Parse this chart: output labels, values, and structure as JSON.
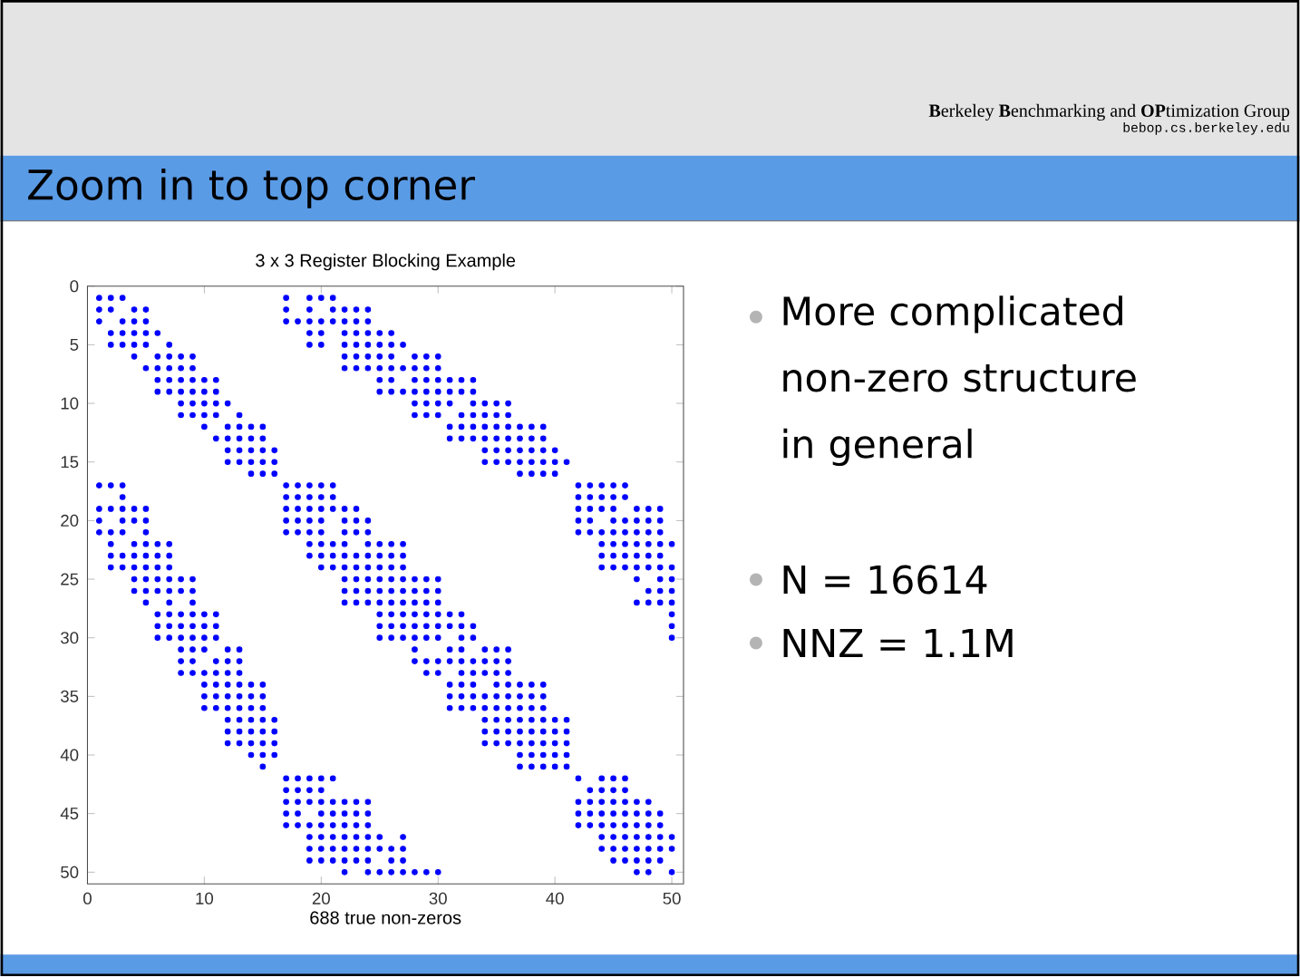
{
  "chart_data": {
    "type": "scatter",
    "title": "3 x 3 Register Blocking Example",
    "xlabel": "688 true non-zeros",
    "xlim": [
      0,
      51
    ],
    "ylim": [
      51,
      0
    ],
    "xticks": [
      0,
      10,
      20,
      30,
      40,
      50
    ],
    "yticks": [
      0,
      5,
      10,
      15,
      20,
      25,
      30,
      35,
      40,
      45,
      50
    ],
    "marker": "circle",
    "annotations": [
      "**B**erkeley **B**enchmarking and **OP**timization Group",
      "bebop.cs.berkeley.edu",
      "Zoom in to top corner",
      "More complicated non-zero structure in general",
      "N = 16614",
      "NNZ = 1.1M"
    ],
    "series": [
      {
        "color": "#0000ff",
        "x": [
          1,
          2,
          3,
          17,
          19,
          20,
          21
        ],
        "values": [
          1,
          1,
          1,
          1,
          1,
          1,
          1
        ]
      },
      {
        "color": "#0000ff",
        "x": [
          1,
          2,
          4,
          5,
          17,
          19,
          21,
          22,
          23,
          24
        ],
        "values": [
          2,
          2,
          2,
          2,
          2,
          2,
          2,
          2,
          2,
          2
        ]
      },
      {
        "color": "#0000ff",
        "x": [
          1,
          3,
          4,
          5,
          17,
          18,
          19,
          20,
          21,
          22,
          23,
          24
        ],
        "values": [
          3,
          3,
          3,
          3,
          3,
          3,
          3,
          3,
          3,
          3,
          3,
          3
        ]
      },
      {
        "color": "#0000ff",
        "x": [
          2,
          3,
          4,
          5,
          6,
          19,
          20,
          22,
          23,
          24,
          25,
          26
        ],
        "values": [
          4,
          4,
          4,
          4,
          4,
          4,
          4,
          4,
          4,
          4,
          4,
          4
        ]
      },
      {
        "color": "#0000ff",
        "x": [
          2,
          3,
          4,
          5,
          7,
          19,
          20,
          22,
          23,
          24,
          25,
          26,
          27
        ],
        "values": [
          5,
          5,
          5,
          5,
          5,
          5,
          5,
          5,
          5,
          5,
          5,
          5,
          5
        ]
      },
      {
        "color": "#0000ff",
        "x": [
          4,
          6,
          7,
          8,
          9,
          22,
          23,
          24,
          25,
          26,
          28,
          29,
          30
        ],
        "values": [
          6,
          6,
          6,
          6,
          6,
          6,
          6,
          6,
          6,
          6,
          6,
          6,
          6
        ]
      },
      {
        "color": "#0000ff",
        "x": [
          5,
          6,
          7,
          8,
          9,
          22,
          23,
          24,
          25,
          26,
          27,
          28,
          29,
          30
        ],
        "values": [
          7,
          7,
          7,
          7,
          7,
          7,
          7,
          7,
          7,
          7,
          7,
          7,
          7,
          7
        ]
      },
      {
        "color": "#0000ff",
        "x": [
          6,
          7,
          8,
          9,
          10,
          11,
          25,
          26,
          28,
          29,
          30,
          31,
          32,
          33
        ],
        "values": [
          8,
          8,
          8,
          8,
          8,
          8,
          8,
          8,
          8,
          8,
          8,
          8,
          8,
          8
        ]
      },
      {
        "color": "#0000ff",
        "x": [
          6,
          7,
          8,
          9,
          10,
          11,
          25,
          26,
          27,
          28,
          29,
          30,
          31,
          32,
          33
        ],
        "values": [
          9,
          9,
          9,
          9,
          9,
          9,
          9,
          9,
          9,
          9,
          9,
          9,
          9,
          9,
          9
        ]
      },
      {
        "color": "#0000ff",
        "x": [
          8,
          9,
          10,
          11,
          12,
          28,
          29,
          30,
          31,
          33,
          34,
          35,
          36
        ],
        "values": [
          10,
          10,
          10,
          10,
          10,
          10,
          10,
          10,
          10,
          10,
          10,
          10,
          10
        ]
      },
      {
        "color": "#0000ff",
        "x": [
          8,
          9,
          10,
          11,
          13,
          28,
          29,
          30,
          32,
          33,
          34,
          35,
          36
        ],
        "values": [
          11,
          11,
          11,
          11,
          11,
          11,
          11,
          11,
          11,
          11,
          11,
          11,
          11
        ]
      },
      {
        "color": "#0000ff",
        "x": [
          10,
          12,
          13,
          14,
          15,
          31,
          32,
          33,
          34,
          35,
          36,
          37,
          38,
          39
        ],
        "values": [
          12,
          12,
          12,
          12,
          12,
          12,
          12,
          12,
          12,
          12,
          12,
          12,
          12,
          12
        ]
      },
      {
        "color": "#0000ff",
        "x": [
          11,
          12,
          13,
          14,
          15,
          31,
          32,
          33,
          34,
          35,
          36,
          37,
          38,
          39
        ],
        "values": [
          13,
          13,
          13,
          13,
          13,
          13,
          13,
          13,
          13,
          13,
          13,
          13,
          13,
          13
        ]
      },
      {
        "color": "#0000ff",
        "x": [
          12,
          13,
          14,
          15,
          16,
          34,
          35,
          36,
          37,
          38,
          39,
          40
        ],
        "values": [
          14,
          14,
          14,
          14,
          14,
          14,
          14,
          14,
          14,
          14,
          14,
          14
        ]
      },
      {
        "color": "#0000ff",
        "x": [
          12,
          13,
          14,
          15,
          16,
          34,
          35,
          36,
          37,
          38,
          39,
          40,
          41
        ],
        "values": [
          15,
          15,
          15,
          15,
          15,
          15,
          15,
          15,
          15,
          15,
          15,
          15,
          15
        ]
      },
      {
        "color": "#0000ff",
        "x": [
          14,
          15,
          16,
          37,
          38,
          39,
          40
        ],
        "values": [
          16,
          16,
          16,
          16,
          16,
          16,
          16
        ]
      },
      {
        "color": "#0000ff",
        "x": [
          1,
          2,
          3,
          17,
          18,
          19,
          20,
          21,
          42,
          43,
          44,
          45,
          46
        ],
        "values": [
          17,
          17,
          17,
          17,
          17,
          17,
          17,
          17,
          17,
          17,
          17,
          17,
          17
        ]
      },
      {
        "color": "#0000ff",
        "x": [
          3,
          17,
          18,
          19,
          20,
          21,
          42,
          43,
          44,
          45,
          46
        ],
        "values": [
          18,
          18,
          18,
          18,
          18,
          18,
          18,
          18,
          18,
          18,
          18
        ]
      },
      {
        "color": "#0000ff",
        "x": [
          1,
          2,
          3,
          4,
          5,
          17,
          18,
          19,
          20,
          21,
          22,
          23,
          42,
          43,
          44,
          45,
          47,
          48,
          49
        ],
        "values": [
          19,
          19,
          19,
          19,
          19,
          19,
          19,
          19,
          19,
          19,
          19,
          19,
          19,
          19,
          19,
          19,
          19,
          19,
          19
        ]
      },
      {
        "color": "#0000ff",
        "x": [
          1,
          3,
          4,
          5,
          17,
          18,
          19,
          20,
          22,
          23,
          24,
          42,
          43,
          45,
          46,
          47,
          48,
          49
        ],
        "values": [
          20,
          20,
          20,
          20,
          20,
          20,
          20,
          20,
          20,
          20,
          20,
          20,
          20,
          20,
          20,
          20,
          20,
          20
        ]
      },
      {
        "color": "#0000ff",
        "x": [
          1,
          2,
          3,
          5,
          17,
          18,
          19,
          20,
          22,
          23,
          24,
          42,
          43,
          44,
          45,
          46,
          47,
          48,
          49
        ],
        "values": [
          21,
          21,
          21,
          21,
          21,
          21,
          21,
          21,
          21,
          21,
          21,
          21,
          21,
          21,
          21,
          21,
          21,
          21,
          21
        ]
      },
      {
        "color": "#0000ff",
        "x": [
          2,
          4,
          5,
          6,
          7,
          19,
          20,
          21,
          22,
          24,
          25,
          26,
          27,
          44,
          45,
          46,
          47,
          48,
          49,
          50
        ],
        "values": [
          22,
          22,
          22,
          22,
          22,
          22,
          22,
          22,
          22,
          22,
          22,
          22,
          22,
          22,
          22,
          22,
          22,
          22,
          22,
          22
        ]
      },
      {
        "color": "#0000ff",
        "x": [
          2,
          3,
          4,
          5,
          6,
          7,
          19,
          20,
          21,
          22,
          23,
          24,
          25,
          26,
          27,
          44,
          45,
          46,
          47,
          48,
          49
        ],
        "values": [
          23,
          23,
          23,
          23,
          23,
          23,
          23,
          23,
          23,
          23,
          23,
          23,
          23,
          23,
          23,
          23,
          23,
          23,
          23,
          23,
          23
        ]
      },
      {
        "color": "#0000ff",
        "x": [
          2,
          3,
          4,
          5,
          6,
          7,
          20,
          21,
          22,
          23,
          24,
          25,
          26,
          27,
          44,
          45,
          46,
          47,
          48,
          49,
          50
        ],
        "values": [
          24,
          24,
          24,
          24,
          24,
          24,
          24,
          24,
          24,
          24,
          24,
          24,
          24,
          24,
          24,
          24,
          24,
          24,
          24,
          24,
          24
        ]
      },
      {
        "color": "#0000ff",
        "x": [
          4,
          5,
          6,
          7,
          8,
          9,
          22,
          23,
          24,
          25,
          26,
          27,
          28,
          29,
          30,
          47,
          49,
          50
        ],
        "values": [
          25,
          25,
          25,
          25,
          25,
          25,
          25,
          25,
          25,
          25,
          25,
          25,
          25,
          25,
          25,
          25,
          25,
          25
        ]
      },
      {
        "color": "#0000ff",
        "x": [
          4,
          5,
          6,
          7,
          8,
          9,
          22,
          23,
          24,
          25,
          26,
          27,
          28,
          29,
          30,
          48,
          49,
          50
        ],
        "values": [
          26,
          26,
          26,
          26,
          26,
          26,
          26,
          26,
          26,
          26,
          26,
          26,
          26,
          26,
          26,
          26,
          26,
          26
        ]
      },
      {
        "color": "#0000ff",
        "x": [
          5,
          7,
          9,
          22,
          23,
          24,
          25,
          26,
          27,
          28,
          29,
          30,
          47,
          48,
          49,
          50
        ],
        "values": [
          27,
          27,
          27,
          27,
          27,
          27,
          27,
          27,
          27,
          27,
          27,
          27,
          27,
          27,
          27,
          27
        ]
      },
      {
        "color": "#0000ff",
        "x": [
          6,
          7,
          8,
          9,
          10,
          11,
          25,
          26,
          27,
          28,
          29,
          30,
          31,
          32,
          50
        ],
        "values": [
          28,
          28,
          28,
          28,
          28,
          28,
          28,
          28,
          28,
          28,
          28,
          28,
          28,
          28,
          28
        ]
      },
      {
        "color": "#0000ff",
        "x": [
          6,
          7,
          8,
          9,
          10,
          11,
          25,
          26,
          27,
          28,
          29,
          30,
          31,
          32,
          33,
          50
        ],
        "values": [
          29,
          29,
          29,
          29,
          29,
          29,
          29,
          29,
          29,
          29,
          29,
          29,
          29,
          29,
          29,
          29
        ]
      },
      {
        "color": "#0000ff",
        "x": [
          6,
          7,
          8,
          9,
          10,
          11,
          25,
          26,
          27,
          28,
          29,
          30,
          32,
          33,
          50
        ],
        "values": [
          30,
          30,
          30,
          30,
          30,
          30,
          30,
          30,
          30,
          30,
          30,
          30,
          30,
          30,
          30
        ]
      },
      {
        "color": "#0000ff",
        "x": [
          8,
          9,
          10,
          12,
          13,
          28,
          31,
          32,
          34,
          35,
          36
        ],
        "values": [
          31,
          31,
          31,
          31,
          31,
          31,
          31,
          31,
          31,
          31,
          31
        ]
      },
      {
        "color": "#0000ff",
        "x": [
          8,
          9,
          11,
          12,
          13,
          28,
          29,
          30,
          31,
          32,
          33,
          34,
          35,
          36
        ],
        "values": [
          32,
          32,
          32,
          32,
          32,
          32,
          32,
          32,
          32,
          32,
          32,
          32,
          32,
          32
        ]
      },
      {
        "color": "#0000ff",
        "x": [
          8,
          9,
          10,
          11,
          12,
          13,
          29,
          30,
          32,
          33,
          34,
          35,
          36
        ],
        "values": [
          33,
          33,
          33,
          33,
          33,
          33,
          33,
          33,
          33,
          33,
          33,
          33,
          33
        ]
      },
      {
        "color": "#0000ff",
        "x": [
          10,
          11,
          12,
          13,
          14,
          15,
          31,
          32,
          33,
          35,
          36,
          37,
          38,
          39
        ],
        "values": [
          34,
          34,
          34,
          34,
          34,
          34,
          34,
          34,
          34,
          34,
          34,
          34,
          34,
          34
        ]
      },
      {
        "color": "#0000ff",
        "x": [
          10,
          11,
          12,
          13,
          14,
          15,
          31,
          32,
          33,
          34,
          35,
          36,
          37,
          38,
          39
        ],
        "values": [
          35,
          35,
          35,
          35,
          35,
          35,
          35,
          35,
          35,
          35,
          35,
          35,
          35,
          35,
          35
        ]
      },
      {
        "color": "#0000ff",
        "x": [
          10,
          11,
          12,
          13,
          14,
          15,
          31,
          32,
          33,
          34,
          35,
          36,
          37,
          38,
          39
        ],
        "values": [
          36,
          36,
          36,
          36,
          36,
          36,
          36,
          36,
          36,
          36,
          36,
          36,
          36,
          36,
          36
        ]
      },
      {
        "color": "#0000ff",
        "x": [
          12,
          13,
          14,
          15,
          16,
          34,
          35,
          36,
          37,
          38,
          39,
          40,
          41
        ],
        "values": [
          37,
          37,
          37,
          37,
          37,
          37,
          37,
          37,
          37,
          37,
          37,
          37,
          37
        ]
      },
      {
        "color": "#0000ff",
        "x": [
          12,
          13,
          14,
          15,
          16,
          34,
          35,
          36,
          37,
          38,
          39,
          40,
          41
        ],
        "values": [
          38,
          38,
          38,
          38,
          38,
          38,
          38,
          38,
          38,
          38,
          38,
          38,
          38
        ]
      },
      {
        "color": "#0000ff",
        "x": [
          12,
          13,
          14,
          15,
          16,
          34,
          35,
          36,
          37,
          38,
          39,
          40,
          41
        ],
        "values": [
          39,
          39,
          39,
          39,
          39,
          39,
          39,
          39,
          39,
          39,
          39,
          39,
          39
        ]
      },
      {
        "color": "#0000ff",
        "x": [
          14,
          15,
          16,
          37,
          38,
          39,
          40,
          41
        ],
        "values": [
          40,
          40,
          40,
          40,
          40,
          40,
          40,
          40
        ]
      },
      {
        "color": "#0000ff",
        "x": [
          15,
          37,
          38,
          39,
          40,
          41
        ],
        "values": [
          41,
          41,
          41,
          41,
          41,
          41
        ]
      },
      {
        "color": "#0000ff",
        "x": [
          17,
          18,
          19,
          20,
          21,
          42,
          44,
          45,
          46
        ],
        "values": [
          42,
          42,
          42,
          42,
          42,
          42,
          42,
          42,
          42
        ]
      },
      {
        "color": "#0000ff",
        "x": [
          17,
          18,
          19,
          20,
          43,
          44,
          45,
          46
        ],
        "values": [
          43,
          43,
          43,
          43,
          43,
          43,
          43,
          43
        ]
      },
      {
        "color": "#0000ff",
        "x": [
          17,
          18,
          19,
          20,
          21,
          22,
          23,
          24,
          42,
          43,
          44,
          45,
          46,
          47,
          48
        ],
        "values": [
          44,
          44,
          44,
          44,
          44,
          44,
          44,
          44,
          44,
          44,
          44,
          44,
          44,
          44,
          44
        ]
      },
      {
        "color": "#0000ff",
        "x": [
          17,
          18,
          20,
          21,
          22,
          23,
          24,
          42,
          43,
          44,
          45,
          46,
          47,
          48,
          49
        ],
        "values": [
          45,
          45,
          45,
          45,
          45,
          45,
          45,
          45,
          45,
          45,
          45,
          45,
          45,
          45,
          45
        ]
      },
      {
        "color": "#0000ff",
        "x": [
          17,
          18,
          19,
          20,
          21,
          22,
          23,
          24,
          42,
          43,
          44,
          45,
          46,
          47,
          48,
          49
        ],
        "values": [
          46,
          46,
          46,
          46,
          46,
          46,
          46,
          46,
          46,
          46,
          46,
          46,
          46,
          46,
          46,
          46
        ]
      },
      {
        "color": "#0000ff",
        "x": [
          19,
          20,
          21,
          22,
          23,
          24,
          25,
          27,
          44,
          45,
          46,
          47,
          48,
          49,
          50
        ],
        "values": [
          47,
          47,
          47,
          47,
          47,
          47,
          47,
          47,
          47,
          47,
          47,
          47,
          47,
          47,
          47
        ]
      },
      {
        "color": "#0000ff",
        "x": [
          19,
          20,
          21,
          22,
          23,
          24,
          25,
          26,
          27,
          44,
          45,
          46,
          47,
          48,
          49,
          50
        ],
        "values": [
          48,
          48,
          48,
          48,
          48,
          48,
          48,
          48,
          48,
          48,
          48,
          48,
          48,
          48,
          48,
          48
        ]
      },
      {
        "color": "#0000ff",
        "x": [
          19,
          20,
          21,
          22,
          23,
          24,
          26,
          27,
          45,
          46,
          47,
          48,
          49
        ],
        "values": [
          49,
          49,
          49,
          49,
          49,
          49,
          49,
          49,
          49,
          49,
          49,
          49,
          49
        ]
      },
      {
        "color": "#0000ff",
        "x": [
          22,
          24,
          25,
          26,
          27,
          28,
          29,
          30,
          47,
          48,
          50
        ],
        "values": [
          50,
          50,
          50,
          50,
          50,
          50,
          50,
          50,
          50,
          50,
          50
        ]
      }
    ]
  }
}
